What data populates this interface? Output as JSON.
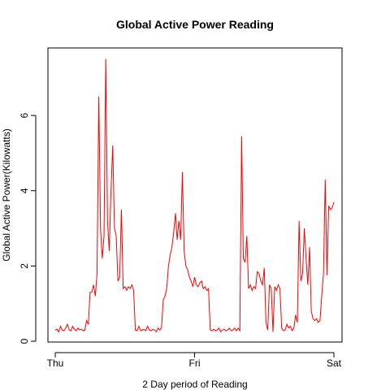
{
  "chart_data": {
    "type": "line",
    "title": "Global Active Power Reading",
    "xlabel": "2 Day period of Reading",
    "ylabel": "Global Active Power(Kilowatts)",
    "x_ticks": [
      "Thu",
      "Fri",
      "Sat"
    ],
    "y_ticks": [
      0,
      2,
      4,
      6
    ],
    "xlim": [
      0,
      48
    ],
    "ylim": [
      0,
      7.6
    ],
    "grid": false,
    "legend": "none",
    "colors": {
      "line": "#ff0000",
      "axis": "#000000",
      "box": "#000000"
    },
    "series": [
      {
        "x": [
          0.0,
          0.3,
          0.6,
          0.9,
          1.2,
          1.5,
          1.8,
          2.1,
          2.4,
          2.7,
          3.0,
          3.3,
          3.6,
          3.9,
          4.2,
          4.5,
          4.8,
          5.1,
          5.4,
          5.7,
          6.0,
          6.3,
          6.6,
          6.9,
          7.2,
          7.5,
          7.8,
          8.1,
          8.4,
          8.7,
          9.0,
          9.3,
          9.6,
          9.9,
          10.2,
          10.5,
          10.8,
          11.1,
          11.4,
          11.7,
          12.0,
          12.3,
          12.6,
          12.9,
          13.2,
          13.5,
          13.8,
          14.1,
          14.4,
          14.7,
          15.0,
          15.3,
          15.6,
          15.9,
          16.2,
          16.5,
          16.8,
          17.1,
          17.4,
          17.7,
          18.0,
          18.3,
          18.6,
          18.9,
          19.2,
          19.5,
          19.8,
          20.1,
          20.4,
          20.7,
          21.0,
          21.3,
          21.6,
          21.9,
          22.2,
          22.5,
          22.8,
          23.1,
          23.4,
          23.7,
          24.0,
          24.3,
          24.6,
          24.9,
          25.2,
          25.5,
          25.8,
          26.1,
          26.4,
          26.7,
          27.0,
          27.3,
          27.6,
          27.9,
          28.2,
          28.5,
          28.8,
          29.1,
          29.4,
          29.7,
          30.0,
          30.3,
          30.6,
          30.9,
          31.2,
          31.5,
          31.8,
          32.1,
          32.4,
          32.7,
          33.0,
          33.3,
          33.6,
          33.9,
          34.2,
          34.5,
          34.8,
          35.1,
          35.4,
          35.7,
          36.0,
          36.3,
          36.6,
          36.9,
          37.2,
          37.5,
          37.8,
          38.1,
          38.4,
          38.7,
          39.0,
          39.3,
          39.6,
          39.9,
          40.2,
          40.5,
          40.8,
          41.1,
          41.4,
          41.7,
          42.0,
          42.3,
          42.6,
          42.9,
          43.2,
          43.5,
          43.8,
          44.1,
          44.4,
          44.7,
          45.0,
          45.3,
          45.6,
          45.9,
          46.2,
          46.5,
          46.8,
          47.1,
          47.4,
          47.7,
          48.0
        ],
        "y": [
          0.3,
          0.32,
          0.25,
          0.4,
          0.3,
          0.28,
          0.35,
          0.45,
          0.3,
          0.28,
          0.4,
          0.32,
          0.28,
          0.35,
          0.3,
          0.32,
          0.28,
          0.3,
          0.55,
          0.45,
          1.3,
          1.3,
          1.5,
          1.2,
          1.8,
          6.5,
          3.0,
          2.2,
          2.8,
          7.5,
          3.2,
          2.4,
          4.0,
          5.2,
          3.0,
          2.8,
          1.6,
          1.7,
          3.5,
          1.4,
          1.45,
          1.35,
          1.45,
          1.4,
          1.5,
          1.35,
          0.3,
          0.28,
          0.4,
          0.28,
          0.3,
          0.32,
          0.28,
          0.4,
          0.3,
          0.28,
          0.32,
          0.3,
          0.25,
          0.35,
          0.3,
          0.35,
          1.1,
          1.2,
          1.4,
          2.0,
          2.3,
          2.5,
          2.9,
          3.4,
          2.7,
          3.2,
          2.7,
          4.5,
          2.4,
          2.0,
          1.9,
          1.7,
          1.6,
          1.45,
          1.7,
          1.5,
          1.45,
          1.55,
          1.6,
          1.4,
          1.45,
          1.35,
          1.4,
          0.3,
          0.28,
          0.32,
          0.28,
          0.3,
          0.35,
          0.25,
          0.3,
          0.32,
          0.28,
          0.3,
          0.35,
          0.28,
          0.3,
          0.35,
          0.28,
          0.35,
          0.28,
          5.45,
          2.2,
          2.1,
          2.8,
          1.4,
          1.5,
          1.35,
          1.45,
          1.4,
          1.85,
          1.8,
          1.6,
          1.5,
          1.95,
          0.5,
          0.3,
          1.5,
          1.4,
          0.25,
          1.45,
          1.35,
          1.5,
          1.4,
          0.35,
          0.28,
          0.3,
          0.45,
          0.35,
          0.4,
          0.28,
          0.35,
          0.7,
          0.5,
          3.2,
          1.6,
          1.8,
          3.0,
          2.2,
          1.5,
          2.5,
          0.8,
          0.6,
          0.55,
          0.6,
          0.5,
          0.55,
          1.2,
          1.8,
          4.3,
          1.75,
          3.6,
          3.5,
          3.55,
          3.7
        ]
      }
    ]
  }
}
